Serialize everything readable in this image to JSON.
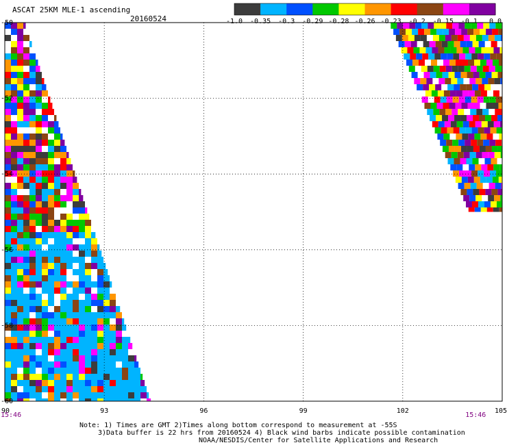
{
  "header": {
    "title": "ASCAT 25KM MLE-1 ascending",
    "date": "20160524"
  },
  "colorbar": {
    "colors": [
      "#3c3c3c",
      "#00b4ff",
      "#0050ff",
      "#00c800",
      "#ffff00",
      "#ff9600",
      "#ff0000",
      "#8b4513",
      "#ff00ff",
      "#8000a0"
    ],
    "tick_labels": [
      "-1.0",
      "-0.35",
      "-0.3",
      "-0.29",
      "-0.28",
      "-0.26",
      "-0.23",
      "-0.2",
      "-0.15",
      "-0.1",
      "0.0"
    ]
  },
  "chart_data": {
    "type": "heatmap",
    "title": "ASCAT 25KM MLE-1 ascending",
    "subtitle": "20160524",
    "xlabel": "",
    "ylabel": "",
    "xlim": [
      90,
      105
    ],
    "ylim": [
      -60,
      -50
    ],
    "grid": true,
    "x_ticks": [
      "90",
      "93",
      "96",
      "99",
      "102",
      "105"
    ],
    "y_ticks": [
      "-50",
      "-52",
      "-54",
      "-56",
      "-58",
      "-60"
    ],
    "swath_times": [
      {
        "label": "15:46",
        "lon": 90
      },
      {
        "label": "15:46",
        "lon": 104.2
      }
    ],
    "swaths": [
      {
        "name": "",
        "lat": [
          -60,
          -50
        ],
        "lon_start": [
          90,
          90
        ],
        "lon_end": [
          94.4,
          90.6
        ]
      },
      {
        "name": "",
        "lat": [
          -55,
          -50
        ],
        "lon_start": [
          104.0,
          101.6
        ],
        "lon_end": [
          105,
          105
        ]
      }
    ]
  },
  "notes": {
    "line1": "Note: 1) Times are GMT 2)Times along bottom correspond to measurement at -55S",
    "line2": "3)Data buffer is 22 hrs from 20160524 4) Black wind barbs indicate possible contamination",
    "line3": "NOAA/NESDIS/Center for Satellite Applications and Research"
  }
}
